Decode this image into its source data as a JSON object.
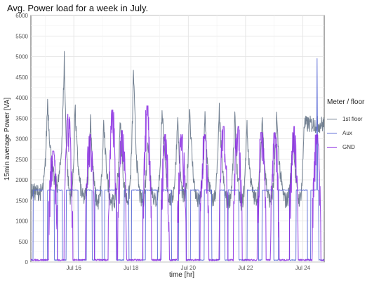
{
  "chart_data": {
    "type": "line",
    "title": "Avg. Power load for a week in July.",
    "xlabel": "time [hr]",
    "ylabel": "15min average Power [VA]",
    "ylim": [
      0,
      6000
    ],
    "y_ticks": [
      "0",
      "500",
      "1000",
      "1500",
      "2000",
      "2500",
      "3000",
      "3500",
      "4000",
      "4500",
      "5000",
      "5500",
      "6000"
    ],
    "x_ticks": [
      "Jul 16",
      "Jul 18",
      "Jul 20",
      "Jul 22",
      "Jul 24"
    ],
    "x_range": [
      "2019-07-14 12:00",
      "2019-07-24 18:00"
    ],
    "grid": true,
    "legend": {
      "title": "Meter / floor",
      "placement": "right",
      "entries": [
        "1st floor",
        "Aux",
        "GND"
      ]
    },
    "colors": {
      "1st floor": "#6b7a8c",
      "Aux": "#5868d6",
      "GND": "#8a2be2"
    },
    "series": [
      {
        "name": "1st floor",
        "peak_times": [
          "Jul 15 02:00",
          "Jul 15 16:00",
          "Jul 16 01:00",
          "Jul 16 14:00",
          "Jul 17 01:00",
          "Jul 17 15:00",
          "Jul 18 02:00",
          "Jul 18 14:00",
          "Jul 19 02:00",
          "Jul 19 15:00",
          "Jul 20 01:00",
          "Jul 20 14:00",
          "Jul 21 02:00",
          "Jul 21 15:00",
          "Jul 22 01:00",
          "Jul 22 14:00",
          "Jul 23 02:00",
          "Jul 23 16:00",
          "Jul 24 01:00"
        ],
        "peak_values": [
          3950,
          5000,
          3800,
          3550,
          3400,
          3450,
          4700,
          3100,
          3850,
          3600,
          3900,
          3600,
          3700,
          3550,
          3400,
          3550,
          3600,
          3300,
          3350
        ],
        "trough_values": [
          1700,
          1400,
          1400,
          1300,
          1300,
          1350,
          1300,
          1350,
          1350,
          1400,
          1300,
          1350,
          1300,
          1300,
          1400,
          1350,
          1350,
          1400,
          1350
        ]
      },
      {
        "name": "Aux",
        "high_value": 1750,
        "low_value": 50,
        "spike": {
          "time": "Jul 24 12:00",
          "value": 4950
        }
      },
      {
        "name": "GND",
        "pulse_starts": [
          "Jul 15 03:00",
          "Jul 15 16:00",
          "Jul 16 10:00",
          "Jul 17 05:00",
          "Jul 17 13:00",
          "Jul 18 10:00",
          "Jul 19 01:00",
          "Jul 19 15:00",
          "Jul 20 10:00",
          "Jul 21 02:00",
          "Jul 21 14:00",
          "Jul 22 10:00",
          "Jul 22 21:00",
          "Jul 23 13:00",
          "Jul 24 08:00"
        ],
        "pulse_peaks": [
          2700,
          3600,
          3100,
          3700,
          3200,
          3800,
          3100,
          3100,
          3100,
          3300,
          3300,
          3150,
          3150,
          3300,
          3100
        ]
      }
    ]
  }
}
